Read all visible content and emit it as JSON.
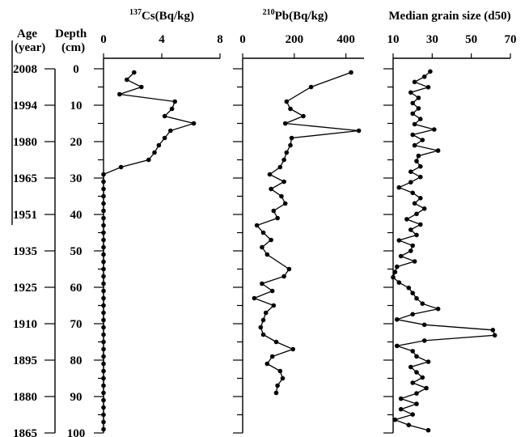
{
  "chart_data": {
    "type": "line",
    "axis_titles": {
      "age": "Age",
      "age_unit": "(year)",
      "depth": "Depth",
      "depth_unit": "(cm)"
    },
    "depth_axis": {
      "range": [
        0,
        100
      ],
      "ticks": [
        0,
        10,
        20,
        30,
        40,
        50,
        60,
        70,
        80,
        90,
        100
      ]
    },
    "age_labels": [
      {
        "age": "2008",
        "depth": 0
      },
      {
        "age": "1994",
        "depth": 10
      },
      {
        "age": "1980",
        "depth": 20
      },
      {
        "age": "1965",
        "depth": 30
      },
      {
        "age": "1951",
        "depth": 40
      },
      {
        "age": "1935",
        "depth": 50
      },
      {
        "age": "1925",
        "depth": 60
      },
      {
        "age": "1910",
        "depth": 70
      },
      {
        "age": "1895",
        "depth": 80
      },
      {
        "age": "1880",
        "depth": 90
      },
      {
        "age": "1865",
        "depth": 100
      }
    ],
    "panels": [
      {
        "id": "cs137",
        "title_sup": "137",
        "title": "Cs(Bq/kg)",
        "xlim": [
          0,
          8
        ],
        "xticks": [
          0,
          4,
          8
        ],
        "points": [
          [
            2.1,
            1
          ],
          [
            1.6,
            3
          ],
          [
            2.6,
            5
          ],
          [
            1.1,
            7
          ],
          [
            4.9,
            9
          ],
          [
            4.7,
            11
          ],
          [
            4.2,
            13
          ],
          [
            6.2,
            15
          ],
          [
            4.6,
            17
          ],
          [
            4.2,
            19
          ],
          [
            3.8,
            21
          ],
          [
            3.5,
            23
          ],
          [
            3.1,
            25
          ],
          [
            1.2,
            27
          ],
          [
            0,
            29
          ],
          [
            0,
            31
          ],
          [
            0,
            33
          ],
          [
            0,
            35
          ],
          [
            0,
            37
          ],
          [
            0,
            39
          ],
          [
            0,
            41
          ],
          [
            0,
            43
          ],
          [
            0,
            45
          ],
          [
            0,
            47
          ],
          [
            0,
            49
          ],
          [
            0,
            51
          ],
          [
            0,
            53
          ],
          [
            0,
            55
          ],
          [
            0,
            57
          ],
          [
            0,
            59
          ],
          [
            0,
            61
          ],
          [
            0,
            63
          ],
          [
            0,
            65
          ],
          [
            0,
            67
          ],
          [
            0,
            69
          ],
          [
            0,
            71
          ],
          [
            0,
            73
          ],
          [
            0,
            75
          ],
          [
            0,
            77
          ],
          [
            0,
            79
          ],
          [
            0,
            81
          ],
          [
            0,
            83
          ],
          [
            0,
            85
          ],
          [
            0,
            87
          ],
          [
            0,
            89
          ],
          [
            0,
            91
          ],
          [
            0,
            93
          ],
          [
            0,
            95
          ],
          [
            0,
            97
          ],
          [
            0,
            99
          ]
        ]
      },
      {
        "id": "pb210",
        "title_sup": "210",
        "title": "Pb(Bq/kg)",
        "xlim": [
          0,
          470
        ],
        "xticks": [
          0,
          200,
          400
        ],
        "points": [
          [
            420,
            1
          ],
          [
            265,
            5
          ],
          [
            170,
            9
          ],
          [
            185,
            11
          ],
          [
            235,
            13
          ],
          [
            165,
            15
          ],
          [
            450,
            17
          ],
          [
            190,
            19
          ],
          [
            185,
            21
          ],
          [
            170,
            23
          ],
          [
            160,
            25
          ],
          [
            145,
            27
          ],
          [
            105,
            29
          ],
          [
            160,
            31
          ],
          [
            110,
            33
          ],
          [
            150,
            35
          ],
          [
            165,
            37
          ],
          [
            120,
            39
          ],
          [
            135,
            41
          ],
          [
            55,
            43
          ],
          [
            80,
            45
          ],
          [
            110,
            47
          ],
          [
            75,
            49
          ],
          [
            95,
            51
          ],
          [
            180,
            55
          ],
          [
            160,
            57
          ],
          [
            75,
            59
          ],
          [
            115,
            61
          ],
          [
            45,
            63
          ],
          [
            120,
            65
          ],
          [
            90,
            67
          ],
          [
            80,
            69
          ],
          [
            70,
            71
          ],
          [
            80,
            73
          ],
          [
            130,
            75
          ],
          [
            195,
            77
          ],
          [
            115,
            79
          ],
          [
            95,
            81
          ],
          [
            145,
            83
          ],
          [
            155,
            85
          ],
          [
            135,
            87
          ],
          [
            130,
            89
          ]
        ]
      },
      {
        "id": "d50",
        "title": "Median grain size (d50)",
        "xlim": [
          10,
          70
        ],
        "xticks": [
          10,
          30,
          50,
          70
        ],
        "points": [
          [
            29,
            1
          ],
          [
            26,
            3
          ],
          [
            21,
            5
          ],
          [
            28,
            7
          ],
          [
            19,
            9
          ],
          [
            23,
            11
          ],
          [
            20,
            13
          ],
          [
            23,
            15
          ],
          [
            20,
            17
          ],
          [
            24,
            19
          ],
          [
            21,
            21
          ],
          [
            31,
            23
          ],
          [
            20,
            25
          ],
          [
            25,
            27
          ],
          [
            21,
            29
          ],
          [
            33,
            31
          ],
          [
            23,
            33
          ],
          [
            22,
            35
          ],
          [
            24,
            37
          ],
          [
            19,
            39
          ],
          [
            24,
            41
          ],
          [
            19,
            43
          ],
          [
            13,
            45
          ],
          [
            20,
            47
          ],
          [
            24,
            49
          ],
          [
            21,
            51
          ],
          [
            26,
            53
          ],
          [
            22,
            55
          ],
          [
            17,
            57
          ],
          [
            24,
            59
          ],
          [
            19,
            61
          ],
          [
            22,
            63
          ],
          [
            13,
            65
          ],
          [
            20,
            67
          ],
          [
            19,
            69
          ],
          [
            14,
            71
          ],
          [
            21,
            73
          ],
          [
            12,
            75
          ],
          [
            11,
            77
          ],
          [
            10,
            79
          ],
          [
            13,
            81
          ],
          [
            18,
            83
          ],
          [
            20,
            85
          ],
          [
            22,
            87
          ],
          [
            25,
            89
          ],
          [
            33,
            91
          ],
          [
            20,
            93
          ],
          [
            12,
            95
          ],
          [
            26,
            97
          ],
          [
            61,
            99
          ],
          [
            62,
            101
          ],
          [
            26,
            103
          ],
          [
            12,
            105
          ],
          [
            20,
            107
          ],
          [
            22,
            109
          ],
          [
            28,
            111
          ],
          [
            19,
            113
          ],
          [
            22,
            115
          ],
          [
            25,
            117
          ],
          [
            20,
            119
          ],
          [
            27,
            121
          ],
          [
            22,
            123
          ],
          [
            14,
            125
          ],
          [
            22,
            127
          ],
          [
            14,
            129
          ],
          [
            20,
            131
          ],
          [
            11,
            133
          ],
          [
            18,
            135
          ],
          [
            28,
            137
          ]
        ]
      }
    ]
  }
}
